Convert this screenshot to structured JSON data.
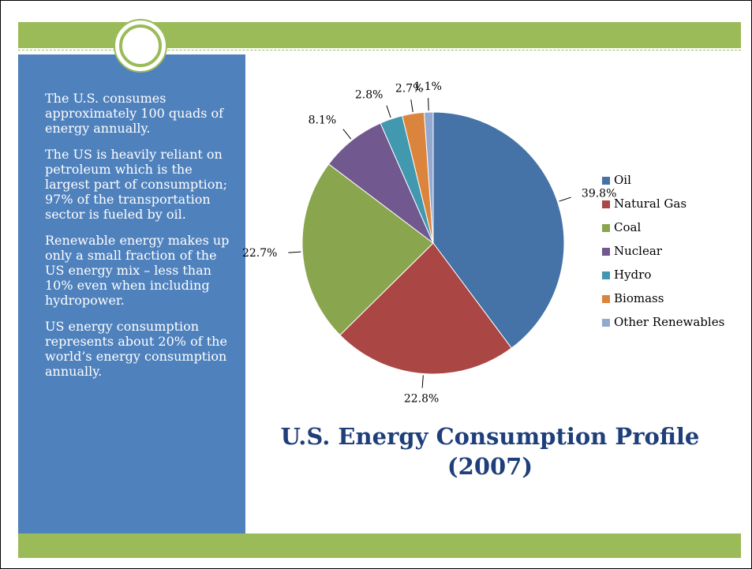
{
  "sidebar": {
    "paragraphs": [
      "The U.S. consumes approximately 100 quads of energy annually.",
      "The US is heavily reliant on petroleum which is the largest part of consumption; 97% of the transportation sector is fueled by oil.",
      "Renewable energy makes up only a small fraction of the US energy mix – less than 10% even when including hydropower.",
      "US energy consumption represents about 20% of the world’s energy consumption annually."
    ]
  },
  "chart_data": {
    "type": "pie",
    "title": "U.S. Energy Consumption Profile (2007)",
    "categories": [
      "Oil",
      "Natural Gas",
      "Coal",
      "Nuclear",
      "Hydro",
      "Biomass",
      "Other Renewables"
    ],
    "values": [
      39.8,
      22.8,
      22.7,
      8.1,
      2.8,
      2.7,
      1.1
    ],
    "value_labels": [
      "39.8%",
      "22.8%",
      "22.7%",
      "8.1%",
      "2.8%",
      "2.7%",
      "1.1%"
    ],
    "colors": [
      "#4572a7",
      "#aa4643",
      "#89a54e",
      "#71588f",
      "#4198af",
      "#db843d",
      "#93a9cf"
    ],
    "legend": "right"
  }
}
